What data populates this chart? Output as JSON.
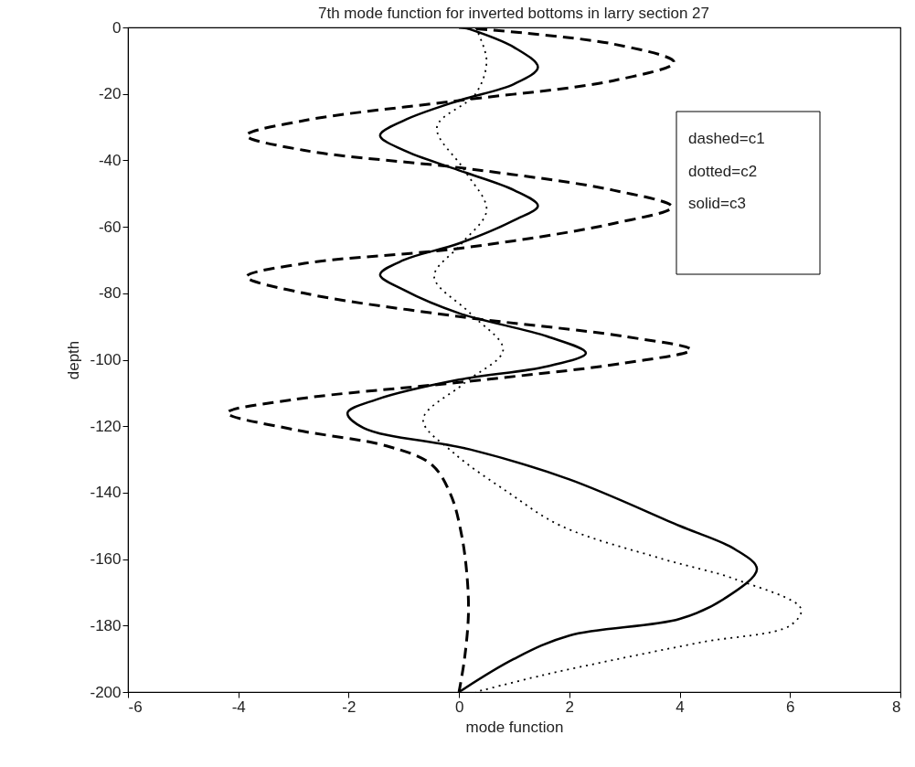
{
  "chart_data": {
    "type": "line",
    "title": "7th mode function for inverted bottoms in larry section 27",
    "xlabel": "mode function",
    "ylabel": "depth",
    "xlim": [
      -6,
      8
    ],
    "ylim": [
      -200,
      0
    ],
    "xticks": [
      -6,
      -4,
      -2,
      0,
      2,
      4,
      6,
      8
    ],
    "yticks": [
      0,
      -20,
      -40,
      -60,
      -80,
      -100,
      -120,
      -140,
      -160,
      -180,
      -200
    ],
    "grid": false,
    "annotations": [
      "dashed=c1",
      "dotted=c2",
      "solid=c3"
    ],
    "series": [
      {
        "color": "#000000",
        "line_style": "dashed",
        "x": [
          0,
          2.8,
          3.9,
          2.8,
          0,
          -2.8,
          -3.85,
          -2.8,
          0.2,
          2.8,
          3.86,
          2.8,
          0,
          -2.8,
          -3.85,
          -2.8,
          0,
          3,
          4.2,
          3,
          0,
          -3,
          -4.2,
          -3,
          -1.3,
          -0.5,
          -0.15,
          0.05,
          0.15,
          0.17,
          0.1,
          0
        ],
        "values": [
          0,
          -5,
          -10.5,
          -16,
          -22,
          -28,
          -32.5,
          -37,
          -42.6,
          -49,
          -54,
          -59,
          -66.5,
          -71,
          -75,
          -80,
          -87,
          -93,
          -97,
          -101,
          -106.8,
          -112,
          -116,
          -121,
          -126,
          -131.5,
          -140.6,
          -153,
          -166,
          -177,
          -190,
          -200
        ]
      },
      {
        "color": "#000000",
        "line_style": "dotted",
        "x": [
          0.3,
          0.5,
          0.3,
          -0.4,
          0.1,
          0.5,
          0.05,
          -0.45,
          0.2,
          0.8,
          0.1,
          -0.65,
          -0.1,
          0.9,
          1.85,
          3.7,
          5,
          6.2,
          6,
          4.4,
          2.9,
          1.5,
          0.3
        ],
        "values": [
          0,
          -10,
          -20,
          -30,
          -43,
          -55,
          -65,
          -75,
          -86,
          -97,
          -107,
          -118,
          -128,
          -140,
          -150,
          -160,
          -166,
          -175,
          -180,
          -185,
          -190,
          -195,
          -200
        ]
      },
      {
        "color": "#000000",
        "line_style": "solid",
        "x": [
          0.1,
          1,
          1.43,
          1,
          0,
          -1,
          -1.43,
          -1,
          0,
          1,
          1.43,
          1,
          0,
          -1,
          -1.43,
          -1,
          0,
          1.6,
          2.3,
          1.6,
          0,
          -1.5,
          -2.02,
          -1.73,
          0.2,
          2,
          4,
          5,
          5.4,
          4.8,
          4,
          2,
          1,
          0
        ],
        "values": [
          0,
          -6,
          -12,
          -17,
          -22,
          -28,
          -32.5,
          -37,
          -43,
          -49,
          -53.7,
          -58,
          -65,
          -70,
          -74.4,
          -79,
          -86,
          -93,
          -98,
          -102,
          -106,
          -112,
          -116,
          -120.5,
          -127,
          -136,
          -150,
          -157,
          -163,
          -172,
          -178,
          -183,
          -190,
          -200
        ]
      }
    ]
  }
}
